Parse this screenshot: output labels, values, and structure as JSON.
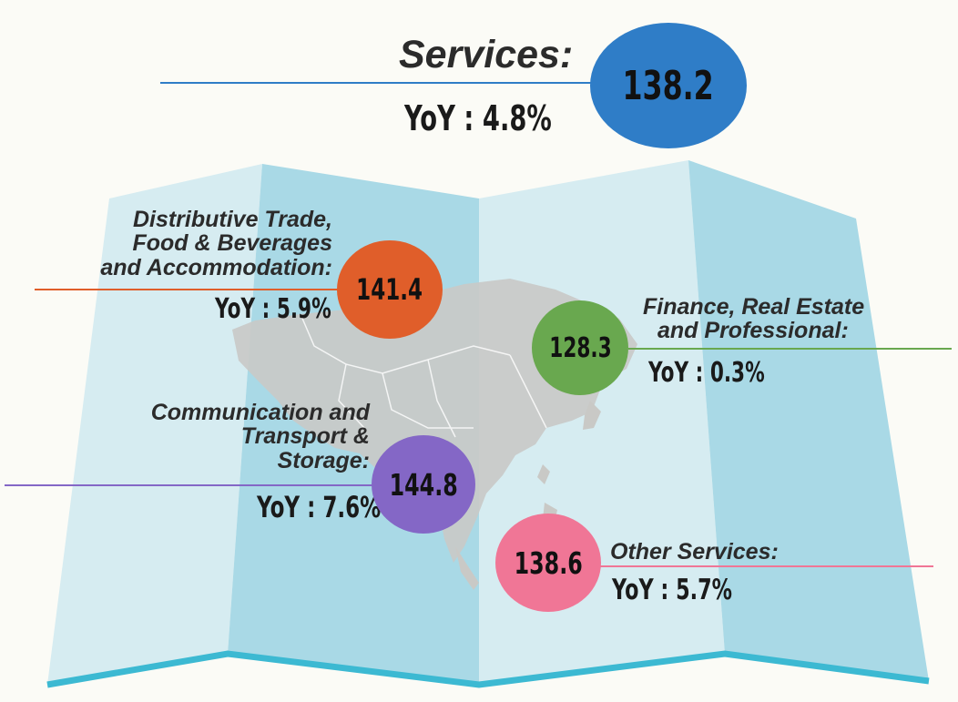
{
  "colors": {
    "services": "#2f7dc7",
    "distributive": "#e05e2a",
    "finance": "#69a84f",
    "communication": "#8467c6",
    "other": "#f07696",
    "map_light": "#d6ecf1",
    "map_mid": "#a9d9e6",
    "map_edge": "#3cb9d2",
    "land": "#c9c9c6"
  },
  "services": {
    "title": "Services:",
    "value": "138.2",
    "yoy": "YoY : 4.8%"
  },
  "distributive": {
    "label_lines": [
      "Distributive Trade,",
      "Food & Beverages",
      "and Accommodation:"
    ],
    "value": "141.4",
    "yoy": "YoY : 5.9%"
  },
  "finance": {
    "label_lines": [
      "Finance, Real Estate",
      "and Professional:"
    ],
    "value": "128.3",
    "yoy": "YoY : 0.3%"
  },
  "communication": {
    "label_lines": [
      "Communication and",
      "Transport &",
      "Storage:"
    ],
    "value": "144.8",
    "yoy": "YoY : 7.6%"
  },
  "other": {
    "label_lines": [
      "Other Services:"
    ],
    "value": "138.6",
    "yoy": "YoY : 5.7%"
  }
}
